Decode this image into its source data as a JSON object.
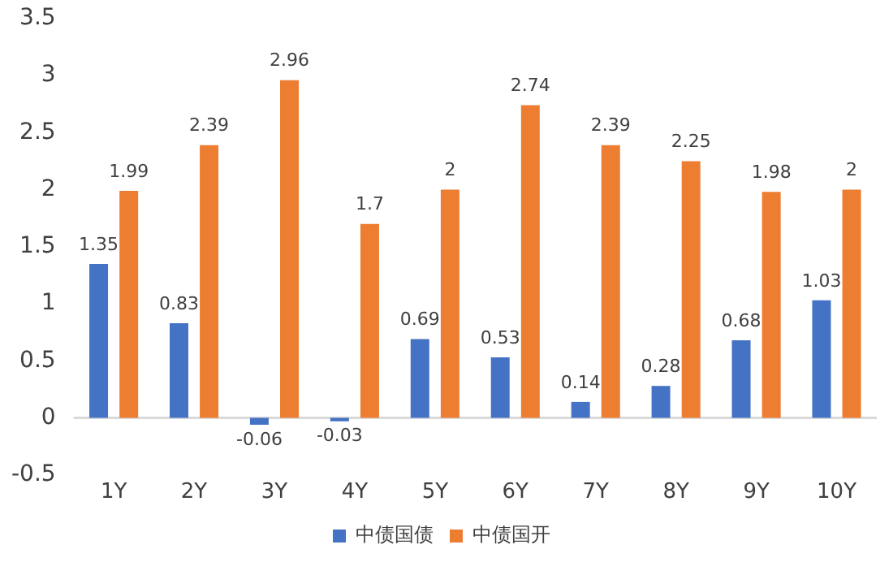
{
  "chart_data": {
    "type": "bar",
    "categories": [
      "1Y",
      "2Y",
      "3Y",
      "4Y",
      "5Y",
      "6Y",
      "7Y",
      "8Y",
      "9Y",
      "10Y"
    ],
    "series": [
      {
        "name": "中债国债",
        "color": "#4472c4",
        "values": [
          1.35,
          0.83,
          -0.06,
          -0.03,
          0.69,
          0.53,
          0.14,
          0.28,
          0.68,
          1.03
        ]
      },
      {
        "name": "中债国开",
        "color": "#ed7d31",
        "values": [
          1.99,
          2.39,
          2.96,
          1.7,
          2,
          2.74,
          2.39,
          2.25,
          1.98,
          2
        ]
      }
    ],
    "ylim": [
      -0.5,
      3.5
    ],
    "yticks": [
      -0.5,
      0,
      0.5,
      1,
      1.5,
      2,
      2.5,
      3,
      3.5
    ],
    "legend": "bottom",
    "data_labels": true
  }
}
